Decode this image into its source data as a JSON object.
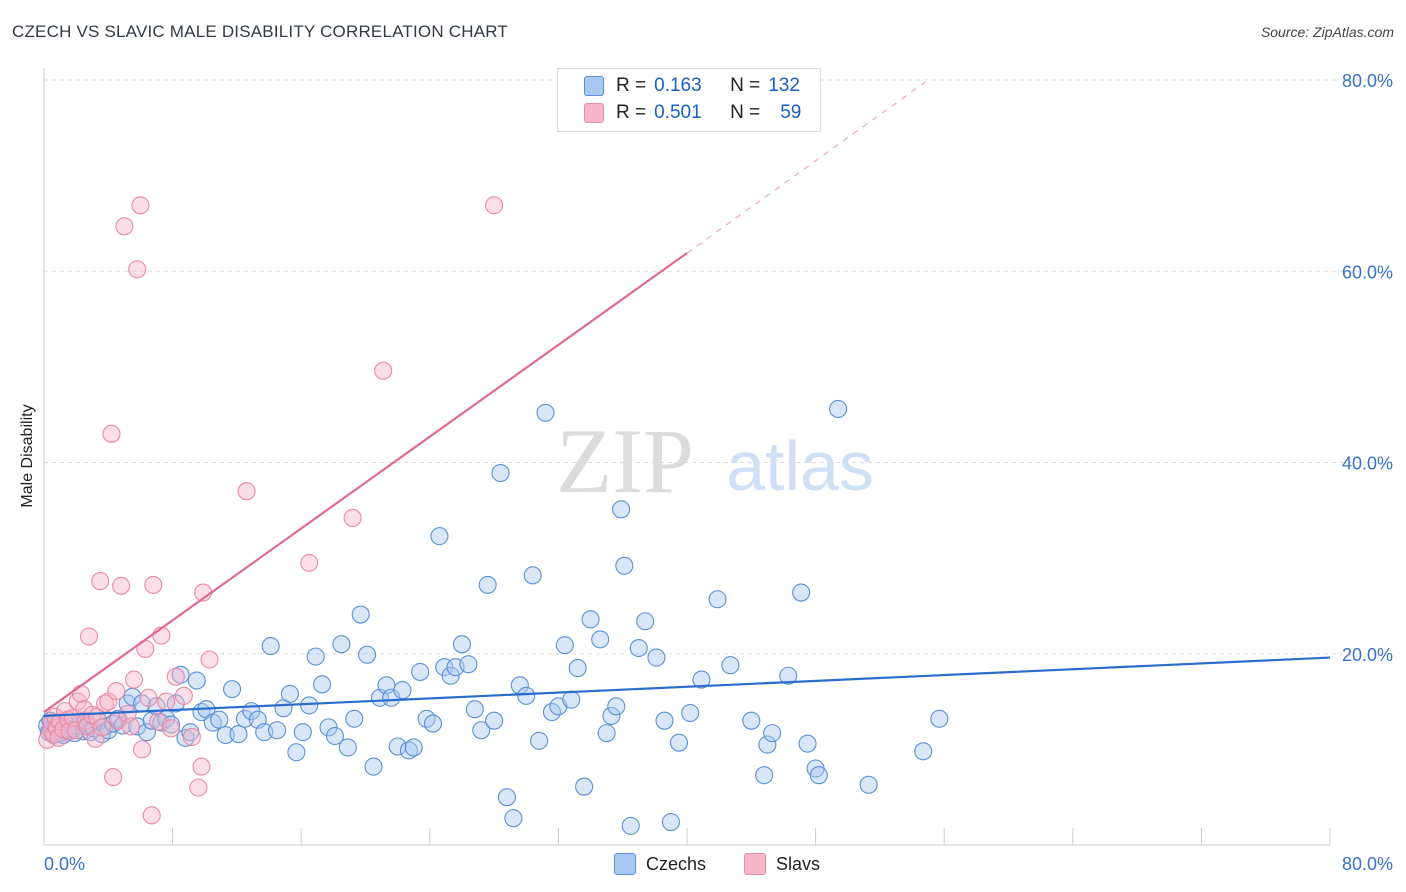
{
  "header": {
    "title": "CZECH VS SLAVIC MALE DISABILITY CORRELATION CHART",
    "source": "Source: ZipAtlas.com"
  },
  "watermark": {
    "zip": "ZIP",
    "atlas": "atlas"
  },
  "legend": {
    "rows": [
      {
        "r_label": "R =",
        "r_value": "0.163",
        "n_label": "N =",
        "n_value": "132"
      },
      {
        "r_label": "R =",
        "r_value": "0.501",
        "n_label": "N =",
        "n_value": "59"
      }
    ]
  },
  "colors": {
    "czechs_fill": "#a9c8f0",
    "czechs_stroke": "#5b8fd6",
    "czechs_line": "#2a6dcc",
    "slavs_fill": "#f7b6c9",
    "slavs_stroke": "#e98aa6",
    "slavs_line": "#e06a92",
    "axis_text": "#3a72c8",
    "grid": "#dddddd"
  },
  "chart_data": {
    "type": "scatter",
    "title": "CZECH VS SLAVIC MALE DISABILITY CORRELATION CHART",
    "ylabel": "Male Disability",
    "xlim": [
      0,
      80
    ],
    "ylim": [
      0,
      80
    ],
    "x_tick_labels": [
      "0.0%",
      "80.0%"
    ],
    "y_tick_labels": [
      "20.0%",
      "40.0%",
      "60.0%",
      "80.0%"
    ],
    "y_ticks": [
      20,
      40,
      60,
      80
    ],
    "grid": true,
    "legend_position": "bottom",
    "series": [
      {
        "name": "Czechs",
        "r": 0.163,
        "n": 132,
        "trend": {
          "x0": 0,
          "y0": 13.5,
          "x1": 80,
          "y1": 19.6
        },
        "points": [
          [
            0.2,
            12.5
          ],
          [
            0.3,
            11.8
          ],
          [
            0.4,
            13.0
          ],
          [
            0.5,
            12.2
          ],
          [
            0.6,
            11.5
          ],
          [
            0.7,
            12.8
          ],
          [
            0.8,
            12.0
          ],
          [
            0.9,
            11.6
          ],
          [
            1.0,
            12.3
          ],
          [
            1.1,
            11.8
          ],
          [
            1.2,
            11.5
          ],
          [
            1.4,
            12.5
          ],
          [
            1.5,
            11.9
          ],
          [
            1.7,
            12.1
          ],
          [
            1.9,
            11.7
          ],
          [
            2.1,
            12.4
          ],
          [
            2.3,
            13.0
          ],
          [
            2.5,
            11.9
          ],
          [
            2.7,
            12.6
          ],
          [
            2.9,
            11.8
          ],
          [
            3.1,
            12.2
          ],
          [
            3.4,
            12.9
          ],
          [
            3.6,
            11.6
          ],
          [
            3.8,
            12.4
          ],
          [
            4.0,
            12.0
          ],
          [
            4.3,
            12.7
          ],
          [
            4.6,
            13.2
          ],
          [
            4.9,
            12.5
          ],
          [
            5.2,
            14.8
          ],
          [
            5.5,
            15.5
          ],
          [
            5.8,
            12.4
          ],
          [
            6.1,
            14.8
          ],
          [
            6.4,
            11.8
          ],
          [
            6.7,
            13.0
          ],
          [
            7.0,
            14.5
          ],
          [
            7.3,
            12.8
          ],
          [
            7.6,
            13.2
          ],
          [
            7.9,
            12.6
          ],
          [
            8.2,
            14.8
          ],
          [
            8.5,
            17.8
          ],
          [
            8.8,
            11.2
          ],
          [
            9.1,
            11.8
          ],
          [
            9.5,
            17.2
          ],
          [
            9.8,
            13.9
          ],
          [
            10.1,
            14.2
          ],
          [
            10.5,
            12.8
          ],
          [
            10.9,
            13.1
          ],
          [
            11.3,
            11.5
          ],
          [
            11.7,
            16.3
          ],
          [
            12.1,
            11.6
          ],
          [
            12.5,
            13.2
          ],
          [
            12.9,
            14.0
          ],
          [
            13.3,
            13.1
          ],
          [
            13.7,
            11.8
          ],
          [
            14.1,
            20.8
          ],
          [
            14.5,
            12.0
          ],
          [
            14.9,
            14.3
          ],
          [
            15.3,
            15.8
          ],
          [
            15.7,
            9.7
          ],
          [
            16.1,
            11.8
          ],
          [
            16.5,
            14.6
          ],
          [
            16.9,
            19.7
          ],
          [
            17.3,
            16.8
          ],
          [
            17.7,
            12.3
          ],
          [
            18.1,
            11.4
          ],
          [
            18.5,
            21.0
          ],
          [
            18.9,
            10.2
          ],
          [
            19.3,
            13.2
          ],
          [
            19.7,
            24.1
          ],
          [
            20.1,
            19.9
          ],
          [
            20.5,
            8.2
          ],
          [
            20.9,
            15.4
          ],
          [
            21.3,
            16.7
          ],
          [
            21.6,
            15.4
          ],
          [
            22.0,
            10.3
          ],
          [
            22.3,
            16.2
          ],
          [
            22.7,
            9.9
          ],
          [
            23.0,
            10.2
          ],
          [
            23.4,
            18.1
          ],
          [
            23.8,
            13.2
          ],
          [
            24.2,
            12.7
          ],
          [
            24.6,
            32.3
          ],
          [
            24.9,
            18.6
          ],
          [
            25.3,
            17.7
          ],
          [
            25.6,
            18.6
          ],
          [
            26.0,
            21.0
          ],
          [
            26.4,
            18.9
          ],
          [
            26.8,
            14.2
          ],
          [
            27.2,
            12.0
          ],
          [
            27.6,
            27.2
          ],
          [
            28.0,
            13.0
          ],
          [
            28.4,
            38.9
          ],
          [
            28.8,
            5.0
          ],
          [
            29.2,
            2.8
          ],
          [
            29.6,
            16.7
          ],
          [
            30.0,
            15.6
          ],
          [
            30.4,
            28.2
          ],
          [
            30.8,
            10.9
          ],
          [
            31.2,
            45.2
          ],
          [
            31.6,
            13.9
          ],
          [
            32.0,
            14.5
          ],
          [
            32.4,
            20.9
          ],
          [
            32.8,
            15.2
          ],
          [
            33.2,
            18.5
          ],
          [
            33.6,
            6.1
          ],
          [
            34.0,
            23.6
          ],
          [
            34.6,
            21.5
          ],
          [
            35.0,
            11.7
          ],
          [
            35.3,
            13.5
          ],
          [
            35.6,
            14.5
          ],
          [
            35.9,
            35.1
          ],
          [
            36.1,
            29.2
          ],
          [
            36.5,
            2.0
          ],
          [
            37.0,
            20.6
          ],
          [
            37.4,
            23.4
          ],
          [
            38.1,
            19.6
          ],
          [
            38.6,
            13.0
          ],
          [
            39.0,
            2.4
          ],
          [
            39.5,
            10.7
          ],
          [
            40.2,
            13.8
          ],
          [
            40.9,
            17.3
          ],
          [
            41.9,
            25.7
          ],
          [
            42.7,
            18.8
          ],
          [
            44.0,
            13.0
          ],
          [
            44.8,
            7.3
          ],
          [
            45.0,
            10.5
          ],
          [
            45.3,
            11.7
          ],
          [
            46.3,
            17.7
          ],
          [
            47.1,
            26.4
          ],
          [
            47.5,
            10.6
          ],
          [
            48.0,
            8.0
          ],
          [
            48.2,
            7.3
          ],
          [
            49.4,
            45.6
          ],
          [
            51.3,
            6.3
          ],
          [
            54.7,
            9.8
          ],
          [
            55.7,
            13.2
          ]
        ]
      },
      {
        "name": "Slavs",
        "r": 0.501,
        "n": 59,
        "trend": {
          "x0": 0,
          "y0": 13.9,
          "x1": 40,
          "y1": 61.9,
          "dashed_to": [
            55,
            80
          ]
        },
        "points": [
          [
            0.2,
            11.0
          ],
          [
            0.4,
            12.0
          ],
          [
            0.5,
            12.8
          ],
          [
            0.6,
            11.6
          ],
          [
            0.7,
            13.4
          ],
          [
            0.8,
            12.3
          ],
          [
            0.9,
            11.2
          ],
          [
            1.0,
            12.9
          ],
          [
            1.2,
            12.1
          ],
          [
            1.3,
            14.0
          ],
          [
            1.5,
            13.1
          ],
          [
            1.6,
            11.9
          ],
          [
            1.8,
            13.3
          ],
          [
            2.0,
            12.0
          ],
          [
            2.1,
            15.0
          ],
          [
            2.3,
            15.8
          ],
          [
            2.5,
            14.2
          ],
          [
            2.6,
            13.0
          ],
          [
            2.7,
            12.4
          ],
          [
            2.8,
            21.8
          ],
          [
            3.0,
            13.6
          ],
          [
            3.2,
            11.1
          ],
          [
            3.3,
            13.4
          ],
          [
            3.5,
            27.6
          ],
          [
            3.6,
            12.3
          ],
          [
            3.8,
            14.8
          ],
          [
            4.0,
            15.0
          ],
          [
            4.2,
            43.0
          ],
          [
            4.3,
            7.1
          ],
          [
            4.5,
            16.1
          ],
          [
            4.6,
            13.0
          ],
          [
            4.8,
            27.1
          ],
          [
            5.0,
            64.7
          ],
          [
            5.2,
            13.7
          ],
          [
            5.4,
            12.4
          ],
          [
            5.6,
            17.3
          ],
          [
            5.8,
            60.2
          ],
          [
            6.0,
            66.9
          ],
          [
            6.1,
            10.0
          ],
          [
            6.3,
            20.5
          ],
          [
            6.5,
            15.4
          ],
          [
            6.7,
            3.1
          ],
          [
            6.8,
            27.2
          ],
          [
            7.1,
            12.9
          ],
          [
            7.3,
            21.9
          ],
          [
            7.6,
            15.0
          ],
          [
            7.9,
            12.2
          ],
          [
            8.2,
            17.6
          ],
          [
            8.7,
            15.6
          ],
          [
            9.2,
            11.3
          ],
          [
            9.6,
            6.0
          ],
          [
            9.9,
            26.4
          ],
          [
            10.3,
            19.4
          ],
          [
            12.6,
            37.0
          ],
          [
            16.5,
            29.5
          ],
          [
            19.2,
            34.2
          ],
          [
            21.1,
            49.6
          ],
          [
            28.0,
            66.9
          ],
          [
            9.8,
            8.2
          ]
        ]
      }
    ]
  }
}
